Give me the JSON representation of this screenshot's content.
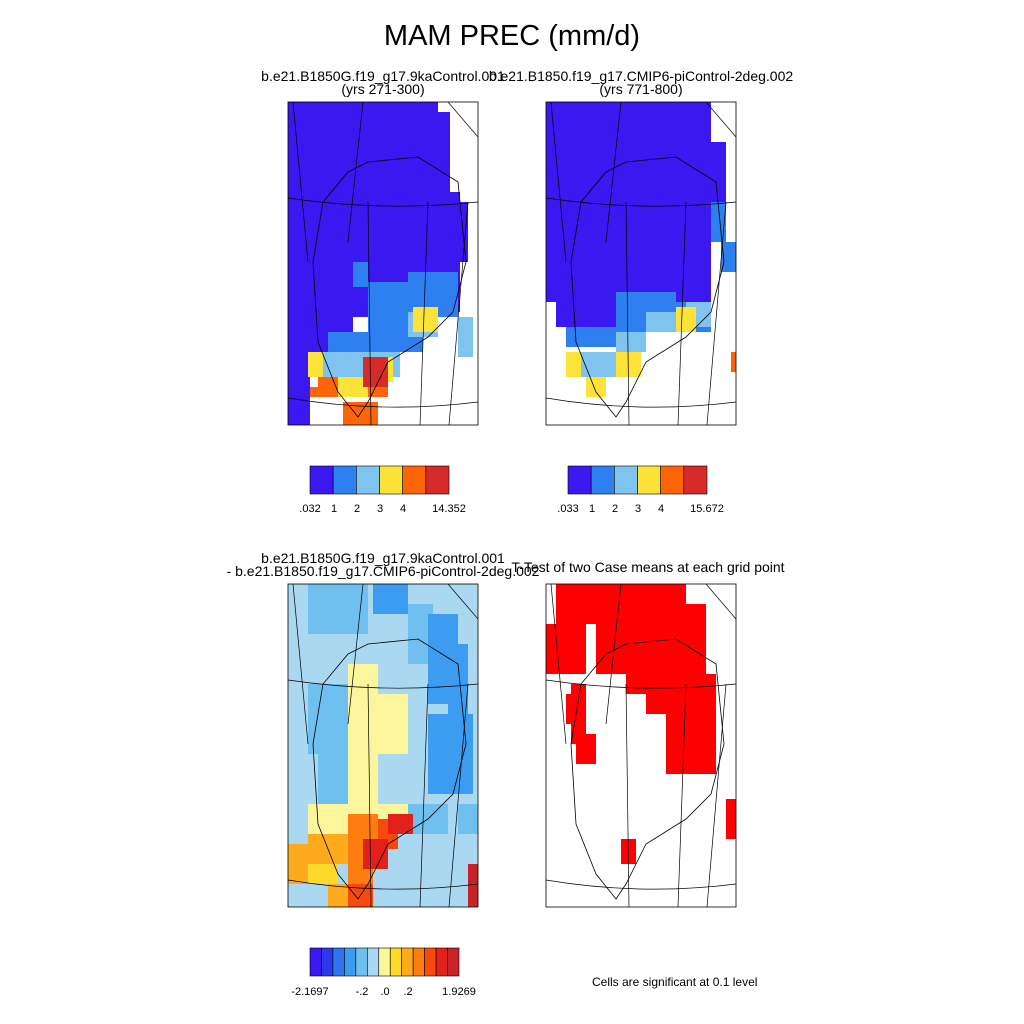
{
  "page_title": "MAM PREC (mm/d)",
  "colors": {
    "abs_scale": [
      "#3b17f0",
      "#2e7ff0",
      "#7ec4ee",
      "#fde23a",
      "#fd6508",
      "#d72b2a"
    ],
    "diff_scale": [
      "#3b17f0",
      "#2b3ae8",
      "#2e74ee",
      "#3c9cef",
      "#6fc0ee",
      "#aad8f0",
      "#fbf59c",
      "#fdd92a",
      "#fdaa1c",
      "#fd7d10",
      "#f84a0c",
      "#e2211a",
      "#c9232a"
    ],
    "significance": "#ff0000"
  },
  "chart_data": [
    {
      "type": "heatmap",
      "id": "panel-case1",
      "title_line1": "b.e21.B1850G.f19_g17.9kaControl.001",
      "title_line2": "(yrs 271-300)",
      "colorbar_labels": [
        ".032",
        "1",
        "2",
        "3",
        "4",
        "14.352"
      ],
      "colorbar_levels": [
        1,
        2,
        3,
        4
      ]
    },
    {
      "type": "heatmap",
      "id": "panel-case2",
      "title_line1": "b.e21.B1850.f19_g17.CMIP6-piControl-2deg.002",
      "title_line2": "(yrs 771-800)",
      "colorbar_labels": [
        ".033",
        "1",
        "2",
        "3",
        "4",
        "15.672"
      ],
      "colorbar_levels": [
        1,
        2,
        3,
        4
      ]
    },
    {
      "type": "heatmap",
      "id": "panel-diff",
      "title_line1": "b.e21.B1850G.f19_g17.9kaControl.001",
      "title_line2": "- b.e21.B1850.f19_g17.CMIP6-piControl-2deg.002",
      "colorbar_labels": [
        "-2.1697",
        "-.2",
        ".0",
        ".2",
        "1.9269"
      ]
    },
    {
      "type": "heatmap",
      "id": "panel-ttest",
      "title_line1": "T-Test of two Case means at each grid point",
      "note": "Cells are significant at 0.1 level"
    }
  ]
}
